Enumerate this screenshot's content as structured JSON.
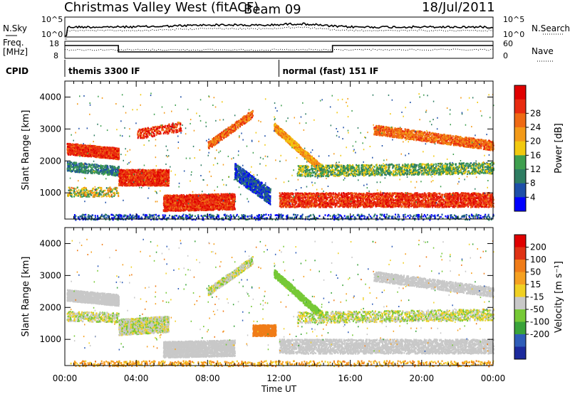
{
  "header": {
    "title": "Christmas Valley West (fitACF)",
    "beam": "Beam 09",
    "date": "18/Jul/2011"
  },
  "colors": {
    "power_scale": [
      "#0000ff",
      "#1e4fa8",
      "#2e7d62",
      "#3f9f4f",
      "#f2c90f",
      "#f39a18",
      "#ef6a14",
      "#e82b10",
      "#e00000"
    ],
    "velocity_scale": [
      "#1c2a9c",
      "#2f5db8",
      "#3aa33a",
      "#76c936",
      "#c8c8c8",
      "#f0d023",
      "#f5a020",
      "#f07c18",
      "#e03214",
      "#e00000"
    ]
  },
  "chart_data": [
    {
      "type": "line",
      "panel": "noise",
      "left_label": "N.Sky",
      "right_label": "N.Search",
      "yticks_left": [
        "10^5",
        "10^0"
      ],
      "yticks_right": [
        "10^5",
        "10^0"
      ]
    },
    {
      "type": "line",
      "panel": "frequency",
      "left_label": [
        "Freq.",
        "[MHz]"
      ],
      "right_label": "Nave",
      "yticks_left": [
        "18",
        "8"
      ],
      "yticks_right": [
        "60",
        "0"
      ]
    },
    {
      "type": "table",
      "panel": "cpid",
      "label": "CPID",
      "segments": [
        {
          "name": "themis 3300 IF",
          "start_hour": 0
        },
        {
          "name": "normal (fast) 151 IF",
          "start_hour": 12
        }
      ]
    },
    {
      "type": "heatmap",
      "panel": "power",
      "ylabel": "Slant Range [km]",
      "yticks": [
        "1000",
        "2000",
        "3000",
        "4000"
      ],
      "y_values": [
        1000,
        2000,
        3000,
        4000
      ],
      "ylim": [
        180,
        4500
      ],
      "colorbar_label": "Power [dB]",
      "colorbar_ticks": [
        "4",
        "8",
        "12",
        "16",
        "20",
        "24",
        "28"
      ],
      "xlim_hours": [
        0,
        24
      ]
    },
    {
      "type": "heatmap",
      "panel": "velocity",
      "ylabel": "Slant Range [km]",
      "yticks": [
        "1000",
        "2000",
        "3000",
        "4000"
      ],
      "y_values": [
        1000,
        2000,
        3000,
        4000
      ],
      "ylim": [
        180,
        4500
      ],
      "colorbar_label": "Velocity [m s⁻¹]",
      "colorbar_ticks": [
        "200",
        "100",
        "50",
        "15",
        "-15",
        "-50",
        "-100",
        "-200"
      ],
      "xlim_hours": [
        0,
        24
      ],
      "xticks": [
        "00:00",
        "04:00",
        "08:00",
        "12:00",
        "16:00",
        "20:00",
        "00:00"
      ],
      "xlabel": "Time UT"
    }
  ]
}
